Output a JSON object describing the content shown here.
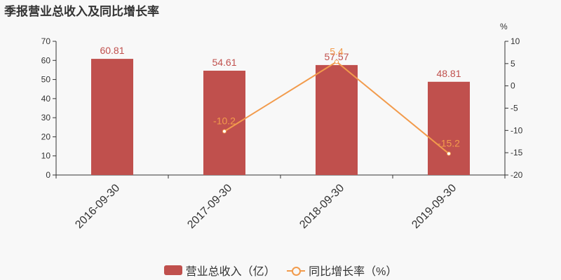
{
  "title": "季报营业总收入及同比增长率",
  "chart_data": {
    "type": "bar",
    "categories": [
      "2016-09-30",
      "2017-09-30",
      "2018-09-30",
      "2019-09-30"
    ],
    "series": [
      {
        "name": "营业总收入（亿）",
        "type": "bar",
        "axis": "left",
        "values": [
          60.81,
          54.61,
          57.57,
          48.81
        ],
        "labels": [
          "60.81",
          "54.61",
          "57.57",
          "48.81"
        ],
        "color": "#c0504d"
      },
      {
        "name": "同比增长率（%）",
        "type": "line",
        "axis": "right",
        "values": [
          null,
          -10.2,
          5.4,
          -15.2
        ],
        "labels": [
          "",
          "-10.2",
          "5.4",
          "-15.2"
        ],
        "color": "#f29b4c"
      }
    ],
    "y_left": {
      "ylim": [
        0,
        70
      ],
      "ticks": [
        0,
        10,
        20,
        30,
        40,
        50,
        60,
        70
      ]
    },
    "y_right": {
      "unit": "%",
      "ylim": [
        -20,
        10
      ],
      "ticks": [
        -20,
        -15,
        -10,
        -5,
        0,
        5,
        10
      ]
    },
    "grid": false,
    "legend": "bottom-center"
  },
  "legend": {
    "bar_label": "营业总收入（亿）",
    "line_label": "同比增长率（%）"
  }
}
